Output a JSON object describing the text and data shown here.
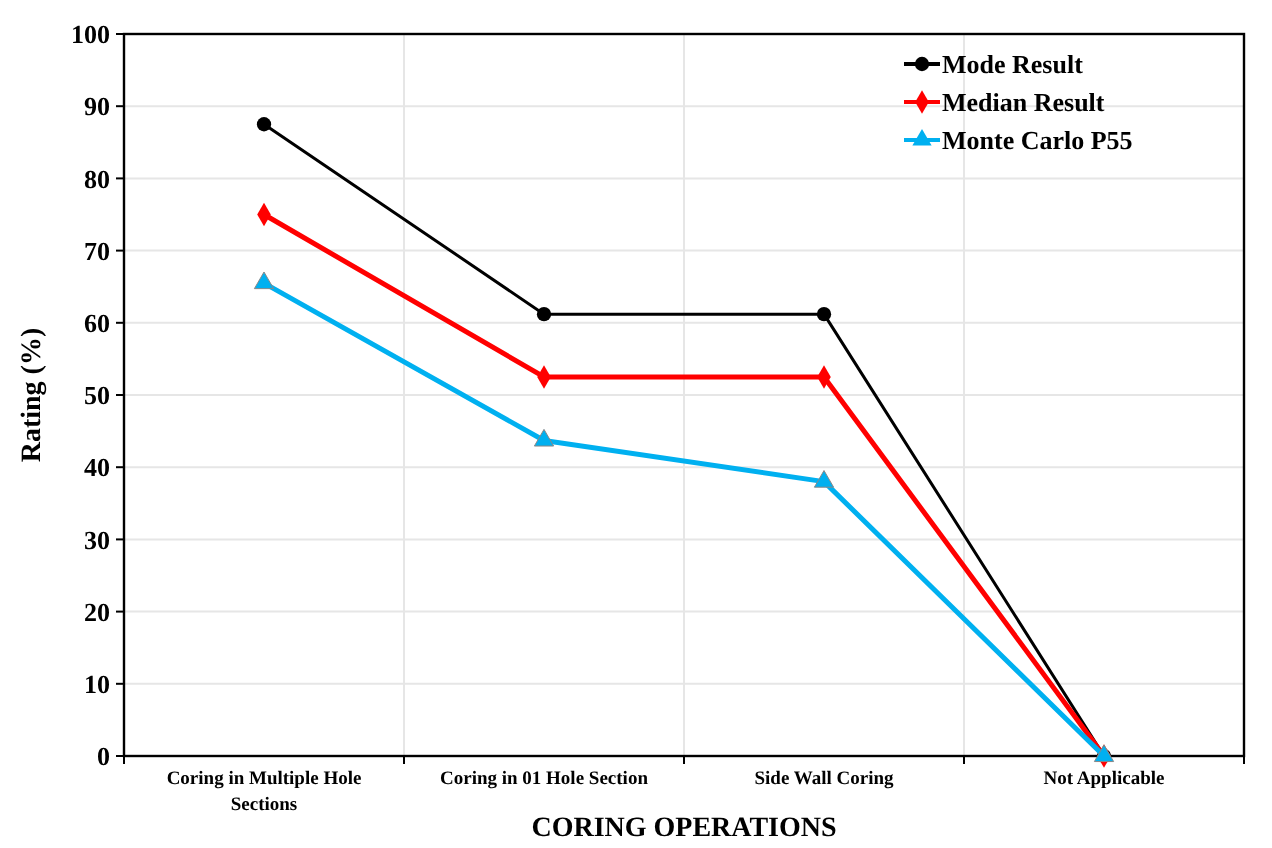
{
  "chart_data": {
    "type": "line",
    "xlabel": "CORING OPERATIONS",
    "ylabel": "Rating (%)",
    "categories": [
      "Coring in Multiple Hole Sections",
      "Coring in 01 Hole Section",
      "Side Wall Coring",
      "Not Applicable"
    ],
    "series": [
      {
        "name": "Mode Result",
        "color": "#000000",
        "marker": "circle",
        "values": [
          87.5,
          61.2,
          61.2,
          0
        ]
      },
      {
        "name": "Median Result",
        "color": "#ff0000",
        "marker": "diamond",
        "values": [
          75,
          52.5,
          52.5,
          0
        ]
      },
      {
        "name": "Monte Carlo P55",
        "color": "#00b0f0",
        "marker": "triangle",
        "values": [
          65.5,
          43.7,
          38,
          0
        ]
      }
    ],
    "ylim": [
      0,
      100
    ],
    "yticks": [
      0,
      10,
      20,
      30,
      40,
      50,
      60,
      70,
      80,
      90,
      100
    ],
    "grid": true,
    "legend": "top right"
  }
}
